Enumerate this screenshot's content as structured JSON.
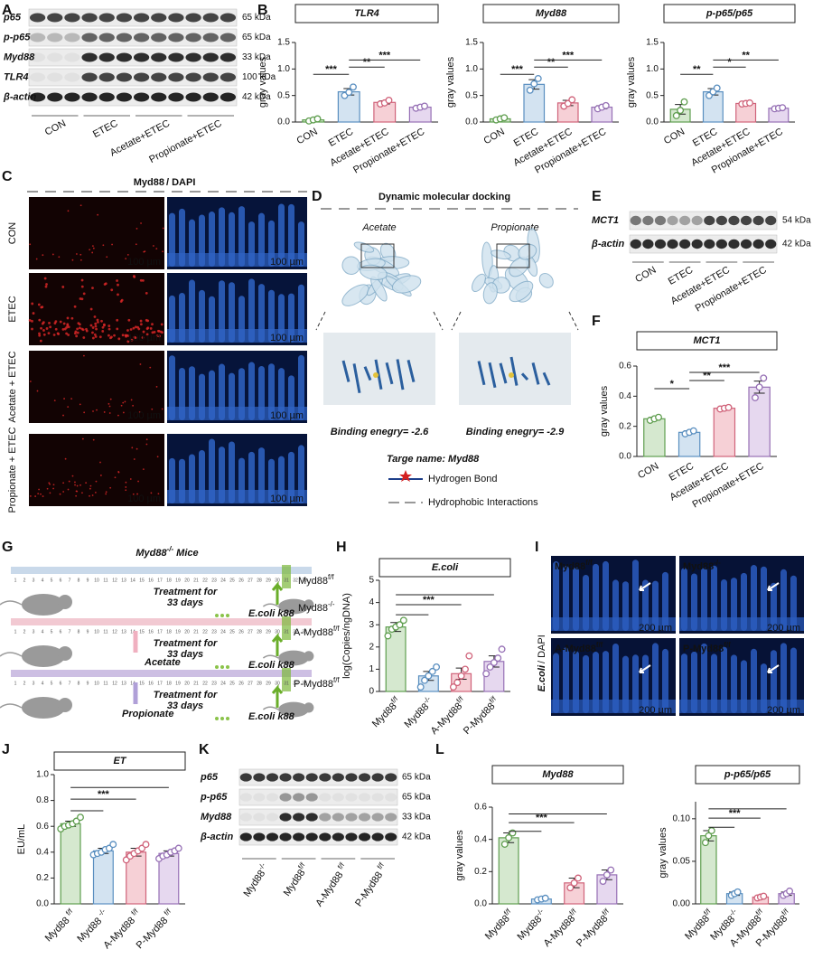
{
  "panel_labels": [
    "A",
    "B",
    "C",
    "D",
    "E",
    "F",
    "G",
    "H",
    "I",
    "J",
    "K",
    "L"
  ],
  "A": {
    "rows": [
      "p65",
      "p-p65",
      "Myd88",
      "TLR4",
      "β-actin"
    ],
    "sizes": [
      "65 kDa",
      "65 kDa",
      "33 kDa",
      "100 kDa",
      "42 kDa"
    ],
    "groups": [
      "CON",
      "ETEC",
      "Acetate+ETEC",
      "Propionate+ETEC"
    ]
  },
  "C": {
    "stain": [
      "Myd88",
      "/ DAPI"
    ],
    "rows": [
      "CON",
      "ETEC",
      "Acetate + ETEC",
      "Propionate + ETEC"
    ],
    "scale_bar": "100 µm"
  },
  "D": {
    "title": "Dynamic molecular docking",
    "ligands": [
      "Acetate",
      "Propionate"
    ],
    "energies": [
      "Binding enegry= -2.6",
      "Binding enegry= -2.9"
    ],
    "target": "Targe name: Myd88",
    "legend": [
      "Hydrogen Bond",
      "Hydrophobic Interactions"
    ]
  },
  "E": {
    "rows": [
      "MCT1",
      "β-actin"
    ],
    "sizes": [
      "54 kDa",
      "42 kDa"
    ],
    "groups": [
      "CON",
      "ETEC",
      "Acetate+ETEC",
      "Propionate+ETEC"
    ]
  },
  "G": {
    "title": {
      "text": "Myd88",
      "sup": "-/-",
      "after": " Mice"
    },
    "treatment": [
      "Treatment for",
      "33 days"
    ],
    "challenge": "E.coli k88",
    "acids": [
      "Acetate",
      "Propionate"
    ],
    "mice": [
      {
        "text": "Myd88",
        "sup": "f/f"
      },
      {
        "text": "Myd88",
        "sup": "-/-"
      },
      {
        "text": "A-Myd88",
        "sup": "f/f"
      },
      {
        "text": "P-Myd88",
        "sup": "f/f"
      }
    ],
    "days": [
      1,
      2,
      3,
      4,
      5,
      6,
      7,
      8,
      9,
      10,
      11,
      12,
      13,
      14,
      15,
      16,
      17,
      18,
      19,
      20,
      21,
      22,
      23,
      24,
      25,
      26,
      27,
      28,
      29,
      30,
      31,
      32,
      33
    ]
  },
  "I": {
    "labels": [
      {
        "text": "Myd88",
        "sup": "f/f"
      },
      {
        "text": "Myd88",
        "sup": "-/-"
      },
      {
        "text": "A-Myd88",
        "sup": "f/f"
      },
      {
        "text": "P-Myd88",
        "sup": "f/f"
      }
    ],
    "stain": [
      "E.coli",
      " / DAPI"
    ],
    "scale_bar": "200 µm"
  },
  "K": {
    "rows": [
      "p65",
      "p-p65",
      "Myd88",
      "β-actin"
    ],
    "sizes": [
      "65 kDa",
      "65 kDa",
      "33 kDa",
      "42 kDa"
    ],
    "groups": [
      {
        "text": "Myd88",
        "sup": "-/-"
      },
      {
        "text": "Myd88",
        "sup": "f/f"
      },
      {
        "text": "A-Myd88 ",
        "sup": "f/f"
      },
      {
        "text": "P-Myd88 ",
        "sup": "f/f"
      }
    ]
  },
  "chart_data": [
    {
      "type": "bar",
      "title": "TLR4",
      "y_label": "gray values",
      "categories": [
        "CON",
        "ETEC",
        "Acetate+ETEC",
        "Propionate+ETEC"
      ],
      "values": [
        0.04,
        0.57,
        0.37,
        0.28
      ],
      "errors": [
        0.02,
        0.06,
        0.03,
        0.02
      ],
      "points": [
        [
          0.02,
          0.04,
          0.06
        ],
        [
          0.5,
          0.56,
          0.66
        ],
        [
          0.34,
          0.36,
          0.41
        ],
        [
          0.26,
          0.28,
          0.3
        ]
      ],
      "colors": [
        "#d5e8cf",
        "#d3e3f1",
        "#f6d0d6",
        "#e6d8ef"
      ],
      "edge_colors": [
        "#5f9e4f",
        "#5a8fc0",
        "#d0637a",
        "#9670b5"
      ],
      "ylim": [
        0,
        1.5
      ],
      "yticks": [
        {
          "value": 0,
          "label": "0.0"
        },
        0.5,
        {
          "value": 1,
          "label": "1.0"
        },
        1.5
      ],
      "comparisons": [
        {
          "from": 0,
          "to": 1,
          "label": "***"
        },
        {
          "from": 1,
          "to": 2,
          "label": "**"
        },
        {
          "from": 1,
          "to": 3,
          "label": "***"
        }
      ]
    },
    {
      "type": "bar",
      "title": "Myd88",
      "y_label": "gray values",
      "categories": [
        "CON",
        "ETEC",
        "Acetate+ETEC",
        "Propionate+ETEC"
      ],
      "values": [
        0.06,
        0.71,
        0.36,
        0.28
      ],
      "errors": [
        0.02,
        0.09,
        0.05,
        0.03
      ],
      "points": [
        [
          0.04,
          0.06,
          0.08
        ],
        [
          0.6,
          0.72,
          0.82
        ],
        [
          0.3,
          0.35,
          0.42
        ],
        [
          0.25,
          0.28,
          0.31
        ]
      ],
      "colors": [
        "#d5e8cf",
        "#d3e3f1",
        "#f6d0d6",
        "#e6d8ef"
      ],
      "edge_colors": [
        "#5f9e4f",
        "#5a8fc0",
        "#d0637a",
        "#9670b5"
      ],
      "ylim": [
        0,
        1.5
      ],
      "yticks": [
        {
          "value": 0,
          "label": "0.0"
        },
        0.5,
        {
          "value": 1,
          "label": "1.0"
        },
        1.5
      ],
      "comparisons": [
        {
          "from": 0,
          "to": 1,
          "label": "***"
        },
        {
          "from": 1,
          "to": 2,
          "label": "**"
        },
        {
          "from": 1,
          "to": 3,
          "label": "***"
        }
      ]
    },
    {
      "type": "bar",
      "title": "p-p65/p65",
      "y_label": "gray values",
      "categories": [
        "CON",
        "ETEC",
        "Acetate+ETEC",
        "Propionate+ETEC"
      ],
      "values": [
        0.24,
        0.57,
        0.35,
        0.26
      ],
      "errors": [
        0.09,
        0.06,
        0.01,
        0.01
      ],
      "points": [
        [
          0.12,
          0.22,
          0.38
        ],
        [
          0.5,
          0.57,
          0.64
        ],
        [
          0.34,
          0.35,
          0.36
        ],
        [
          0.25,
          0.26,
          0.27
        ]
      ],
      "colors": [
        "#d5e8cf",
        "#d3e3f1",
        "#f6d0d6",
        "#e6d8ef"
      ],
      "edge_colors": [
        "#5f9e4f",
        "#5a8fc0",
        "#d0637a",
        "#9670b5"
      ],
      "ylim": [
        0,
        1.5
      ],
      "yticks": [
        {
          "value": 0,
          "label": "0.0"
        },
        0.5,
        {
          "value": 1,
          "label": "1.0"
        },
        1.5
      ],
      "comparisons": [
        {
          "from": 0,
          "to": 1,
          "label": "**"
        },
        {
          "from": 1,
          "to": 2,
          "label": "*"
        },
        {
          "from": 1,
          "to": 3,
          "label": "**"
        }
      ]
    },
    {
      "type": "bar",
      "title": "MCT1",
      "y_label": "gray values",
      "categories": [
        "CON",
        "ETEC",
        "Acetate+ETEC",
        "Propionate+ETEC"
      ],
      "values": [
        0.25,
        0.16,
        0.32,
        0.46
      ],
      "errors": [
        0.01,
        0.01,
        0.005,
        0.04
      ],
      "points": [
        [
          0.24,
          0.25,
          0.26
        ],
        [
          0.15,
          0.16,
          0.17
        ],
        [
          0.315,
          0.32,
          0.325
        ],
        [
          0.39,
          0.46,
          0.52
        ]
      ],
      "colors": [
        "#d5e8cf",
        "#d3e3f1",
        "#f6d0d6",
        "#e6d8ef"
      ],
      "edge_colors": [
        "#5f9e4f",
        "#5a8fc0",
        "#d0637a",
        "#9670b5"
      ],
      "ylim": [
        0,
        0.6
      ],
      "yticks": [
        {
          "value": 0,
          "label": "0.0"
        },
        0.2,
        0.4,
        0.6
      ],
      "comparisons": [
        {
          "from": 0,
          "to": 1,
          "label": "*"
        },
        {
          "from": 1,
          "to": 2,
          "label": "**"
        },
        {
          "from": 1,
          "to": 3,
          "label": "***"
        }
      ]
    },
    {
      "type": "bar",
      "title": "E.coli",
      "y_label": "log(Copies/ngDNA)",
      "categories": [
        {
          "text": "Myd88",
          "sup": "f/f"
        },
        {
          "text": "Myd88",
          "sup": "-/-"
        },
        {
          "text": "A-Myd88",
          "sup": "f/f"
        },
        {
          "text": "P-Myd88",
          "sup": "f/f"
        }
      ],
      "values": [
        2.9,
        0.7,
        0.8,
        1.35
      ],
      "errors": [
        0.2,
        0.2,
        0.25,
        0.25
      ],
      "points": [
        [
          2.5,
          2.8,
          2.9,
          3.0,
          3.2
        ],
        [
          0.2,
          0.5,
          0.7,
          0.9,
          1.1
        ],
        [
          0.2,
          0.4,
          0.7,
          1.0,
          1.6
        ],
        [
          0.8,
          1.1,
          1.3,
          1.5,
          1.9
        ]
      ],
      "colors": [
        "#d5e8cf",
        "#d3e3f1",
        "#f6d0d6",
        "#e6d8ef"
      ],
      "edge_colors": [
        "#5f9e4f",
        "#5a8fc0",
        "#d0637a",
        "#9670b5"
      ],
      "ylim": [
        0,
        5
      ],
      "yticks": [
        0,
        1,
        2,
        3,
        4,
        5
      ],
      "comparisons": [
        {
          "from": 0,
          "to": 1
        },
        {
          "from": 0,
          "to": 2,
          "label": "***"
        },
        {
          "from": 0,
          "to": 3
        }
      ]
    },
    {
      "type": "bar",
      "title": "ET",
      "y_label": "EU/mL",
      "categories": [
        {
          "text": "Myd88 ",
          "sup": "f/f"
        },
        {
          "text": "Myd88 ",
          "sup": "-/-"
        },
        {
          "text": "A-Myd88 ",
          "sup": "f/f"
        },
        {
          "text": "P-Myd88 ",
          "sup": "f/f"
        }
      ],
      "values": [
        0.62,
        0.41,
        0.4,
        0.39
      ],
      "errors": [
        0.02,
        0.02,
        0.03,
        0.02
      ],
      "points": [
        [
          0.58,
          0.6,
          0.61,
          0.62,
          0.64,
          0.67
        ],
        [
          0.38,
          0.39,
          0.4,
          0.42,
          0.43,
          0.46
        ],
        [
          0.34,
          0.37,
          0.39,
          0.41,
          0.43,
          0.46
        ],
        [
          0.35,
          0.37,
          0.38,
          0.4,
          0.41,
          0.43
        ]
      ],
      "colors": [
        "#d5e8cf",
        "#d3e3f1",
        "#f6d0d6",
        "#e6d8ef"
      ],
      "edge_colors": [
        "#5f9e4f",
        "#5a8fc0",
        "#d0637a",
        "#9670b5"
      ],
      "ylim": [
        0,
        1
      ],
      "yticks": [
        {
          "value": 0,
          "label": "0.0"
        },
        0.2,
        0.4,
        0.6,
        0.8,
        {
          "value": 1,
          "label": "1.0"
        }
      ],
      "comparisons": [
        {
          "from": 0,
          "to": 1
        },
        {
          "from": 0,
          "to": 2,
          "label": "***"
        },
        {
          "from": 0,
          "to": 3
        }
      ]
    },
    {
      "type": "bar",
      "title": "Myd88",
      "y_label": "gray values",
      "categories": [
        {
          "text": "Myd88",
          "sup": "f/f"
        },
        {
          "text": "Myd88",
          "sup": "-/-"
        },
        {
          "text": "A-Myd88",
          "sup": "f/f"
        },
        {
          "text": "P-Myd88",
          "sup": "f/f"
        }
      ],
      "values": [
        0.41,
        0.03,
        0.13,
        0.18
      ],
      "errors": [
        0.03,
        0.004,
        0.03,
        0.03
      ],
      "points": [
        [
          0.37,
          0.41,
          0.44
        ],
        [
          0.025,
          0.03,
          0.035
        ],
        [
          0.1,
          0.13,
          0.16
        ],
        [
          0.14,
          0.18,
          0.21
        ]
      ],
      "colors": [
        "#d5e8cf",
        "#d3e3f1",
        "#f6d0d6",
        "#e6d8ef"
      ],
      "edge_colors": [
        "#5f9e4f",
        "#5a8fc0",
        "#d0637a",
        "#9670b5"
      ],
      "ylim": [
        0,
        0.6
      ],
      "yticks": [
        {
          "value": 0,
          "label": "0.0"
        },
        0.2,
        0.4,
        0.6
      ],
      "comparisons": [
        {
          "from": 0,
          "to": 1
        },
        {
          "from": 0,
          "to": 2,
          "label": "***"
        },
        {
          "from": 0,
          "to": 3
        }
      ]
    },
    {
      "type": "bar",
      "title": "p-p65/p65",
      "y_label": "gray values",
      "categories": [
        {
          "text": "Myd88",
          "sup": "f/f"
        },
        {
          "text": "Myd88",
          "sup": "-/-"
        },
        {
          "text": "A-Myd88",
          "sup": "f/f"
        },
        {
          "text": "P-Myd88",
          "sup": "f/f"
        }
      ],
      "values": [
        0.08,
        0.012,
        0.008,
        0.012
      ],
      "errors": [
        0.006,
        0.002,
        0.001,
        0.002
      ],
      "points": [
        [
          0.072,
          0.08,
          0.086
        ],
        [
          0.01,
          0.012,
          0.014
        ],
        [
          0.007,
          0.008,
          0.009
        ],
        [
          0.01,
          0.012,
          0.015
        ]
      ],
      "colors": [
        "#d5e8cf",
        "#d3e3f1",
        "#f6d0d6",
        "#e6d8ef"
      ],
      "edge_colors": [
        "#5f9e4f",
        "#5a8fc0",
        "#d0637a",
        "#9670b5"
      ],
      "ylim": [
        0,
        0.12
      ],
      "yticks": [
        {
          "value": 0,
          "label": "0.00"
        },
        0.05,
        {
          "value": 0.1,
          "label": "0.10"
        }
      ],
      "comparisons": [
        {
          "from": 0,
          "to": 1
        },
        {
          "from": 0,
          "to": 2,
          "label": "***"
        },
        {
          "from": 0,
          "to": 3
        }
      ]
    }
  ]
}
